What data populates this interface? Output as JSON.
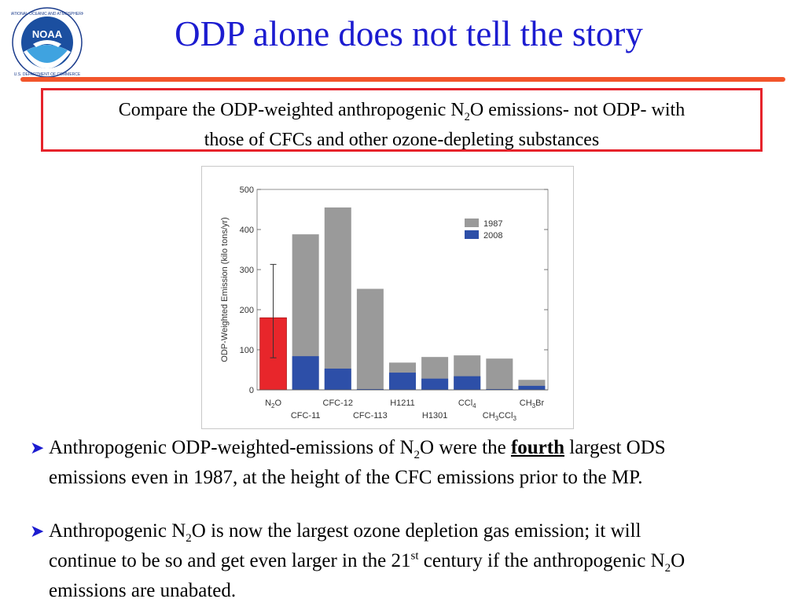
{
  "slide": {
    "title": "ODP alone does not tell the story",
    "logo": {
      "center_text": "NOAA",
      "ring_text": "NATIONAL OCEANIC AND ATMOSPHERIC ADMINISTRATION · U.S. DEPARTMENT OF COMMERCE"
    },
    "callout": {
      "line1_a": "Compare the ODP-weighted anthropogenic N",
      "line1_sub": "2",
      "line1_b": "O emissions- not ODP- with",
      "line2": "those of CFCs and other ozone-depleting substances"
    },
    "bullets": [
      {
        "p1": "Anthropogenic ODP-weighted-emissions of N",
        "sub1": "2",
        "p2": "O were the ",
        "emph": "fourth",
        "p3": " largest ODS",
        "line2": "emissions even in 1987, at the height of the CFC emissions prior to the MP."
      },
      {
        "p1": "Anthropogenic N",
        "sub1": "2",
        "p2": "O is now the largest ozone depletion gas emission; it will",
        "l2a": "continue to be so and get even  larger in the 21",
        "sup": "st",
        "l2b": " century if the anthropogenic N",
        "sub2": "2",
        "l2c": "O",
        "line3": "emissions are unabated."
      }
    ]
  },
  "colors": {
    "title": "#1c1cd0",
    "rule": "#f2552b",
    "callout_border": "#e6232b",
    "bar_1987": "#9a9a9a",
    "bar_2008": "#2d4fa8",
    "bar_n2o": "#e8262b"
  },
  "chart_data": {
    "type": "bar",
    "ylabel": "ODP-Weighted Emission (kilo tons/yr)",
    "ylim": [
      0,
      500
    ],
    "yticks": [
      0,
      100,
      200,
      300,
      400,
      500
    ],
    "categories": [
      "N2O",
      "CFC-11",
      "CFC-12",
      "CFC-113",
      "H1211",
      "H1301",
      "CCl4",
      "CH3CCl3",
      "CH3Br"
    ],
    "category_labels": [
      {
        "main": "N",
        "sub": "2",
        "tail": "O",
        "row": 0
      },
      {
        "main": "CFC-11",
        "sub": "",
        "tail": "",
        "row": 1
      },
      {
        "main": "CFC-12",
        "sub": "",
        "tail": "",
        "row": 0
      },
      {
        "main": "CFC-113",
        "sub": "",
        "tail": "",
        "row": 1
      },
      {
        "main": "H1211",
        "sub": "",
        "tail": "",
        "row": 0
      },
      {
        "main": "H1301",
        "sub": "",
        "tail": "",
        "row": 1
      },
      {
        "main": "CCl",
        "sub": "4",
        "tail": "",
        "row": 0
      },
      {
        "main": "CH",
        "sub": "3",
        "tail": "CCl",
        "sub2": "3",
        "row": 1
      },
      {
        "main": "CH",
        "sub": "3",
        "tail": "Br",
        "row": 0
      }
    ],
    "series": [
      {
        "name": "1987",
        "values": [
          null,
          388,
          455,
          252,
          68,
          82,
          86,
          78,
          25
        ]
      },
      {
        "name": "2008",
        "values": [
          null,
          84,
          53,
          0,
          43,
          28,
          34,
          0,
          10
        ]
      }
    ],
    "n2o": {
      "value": 180,
      "error_low": 80,
      "error_high": 313
    },
    "legend": {
      "position": "top-right",
      "entries": [
        "1987",
        "2008"
      ]
    }
  }
}
